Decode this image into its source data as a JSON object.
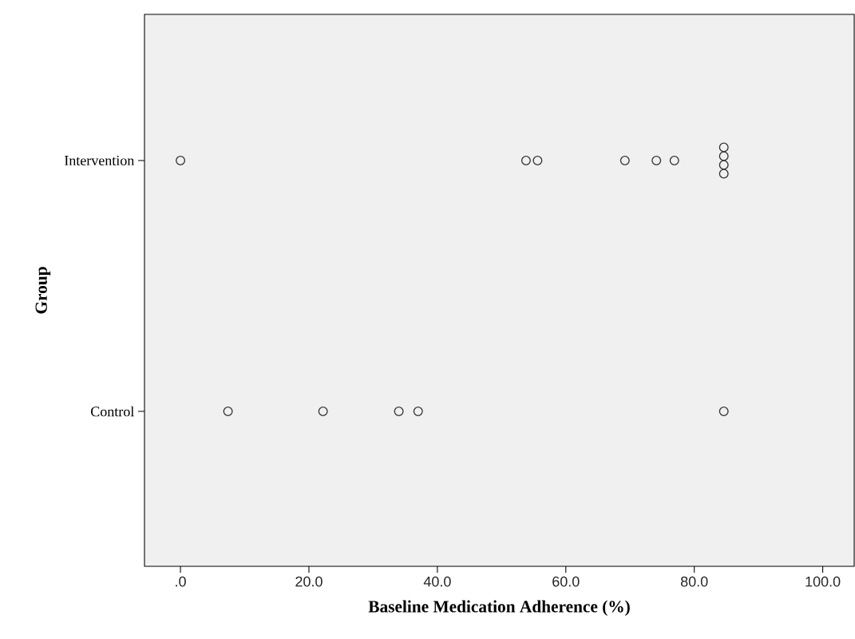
{
  "chart_data": {
    "type": "scatter",
    "orientation": "horizontal",
    "xlabel": "Baseline Medication Adherence (%)",
    "ylabel": "Group",
    "categories": [
      "Intervention",
      "Control"
    ],
    "xlim": [
      -5.6,
      104.9
    ],
    "xticks": [
      {
        "value": 0,
        "label": ".0"
      },
      {
        "value": 20,
        "label": "20.0"
      },
      {
        "value": 40,
        "label": "40.0"
      },
      {
        "value": 60,
        "label": "60.0"
      },
      {
        "value": 80,
        "label": "80.0"
      },
      {
        "value": 100,
        "label": "100.0"
      }
    ],
    "marker": "circle",
    "series": [
      {
        "color": "#333333",
        "x": [
          "Intervention",
          "Intervention",
          "Intervention",
          "Intervention",
          "Intervention",
          "Intervention",
          "Intervention",
          "Intervention",
          "Intervention",
          "Intervention",
          "Control",
          "Control",
          "Control",
          "Control",
          "Control"
        ],
        "values": [
          0,
          53.8,
          55.6,
          69.2,
          74.1,
          76.9,
          84.6,
          84.6,
          84.6,
          84.6,
          7.4,
          22.2,
          34.0,
          37.0,
          84.6
        ]
      }
    ]
  }
}
